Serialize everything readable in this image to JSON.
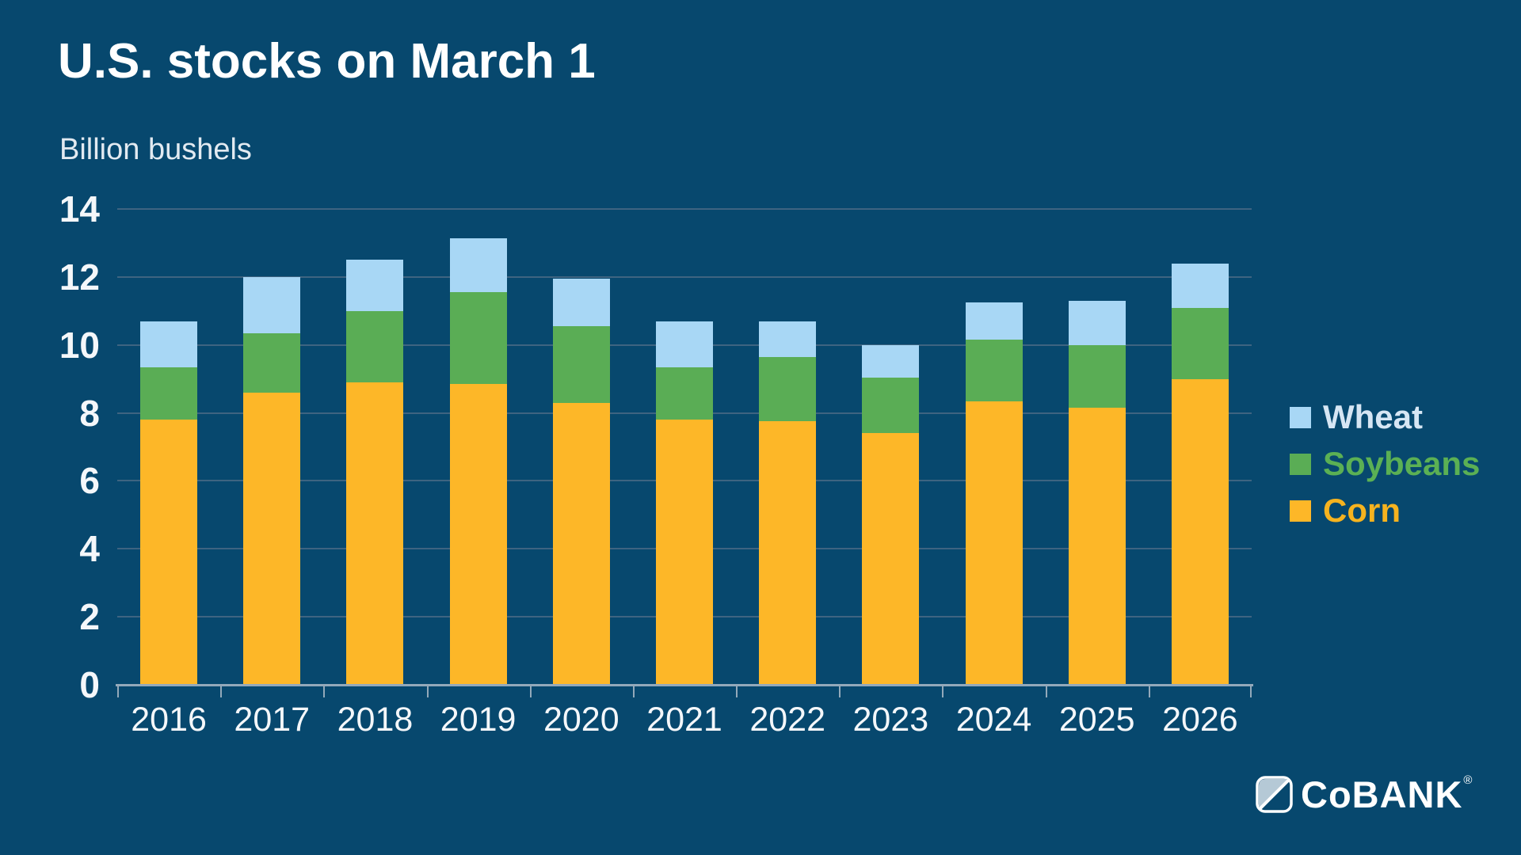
{
  "header": {
    "title": "U.S. stocks on March 1",
    "subtitle": "Billion bushels"
  },
  "chart_data": {
    "type": "bar",
    "stacked": true,
    "title": "U.S. stocks on March 1",
    "ylabel": "Billion bushels",
    "xlabel": "",
    "categories": [
      "2016",
      "2017",
      "2018",
      "2019",
      "2020",
      "2021",
      "2022",
      "2023",
      "2024",
      "2025",
      "2026"
    ],
    "series": [
      {
        "name": "Corn",
        "color": "#FDB728",
        "values": [
          7.8,
          8.6,
          8.9,
          8.85,
          8.3,
          7.8,
          7.75,
          7.4,
          8.35,
          8.15,
          9.0
        ]
      },
      {
        "name": "Soybeans",
        "color": "#5AAD55",
        "values": [
          1.55,
          1.75,
          2.1,
          2.7,
          2.25,
          1.55,
          1.9,
          1.65,
          1.8,
          1.85,
          2.1
        ]
      },
      {
        "name": "Wheat",
        "color": "#A8D7F5",
        "values": [
          1.35,
          1.65,
          1.5,
          1.6,
          1.4,
          1.35,
          1.05,
          0.95,
          1.1,
          1.3,
          1.3
        ]
      }
    ],
    "totals": [
      10.7,
      12.0,
      12.5,
      13.15,
      11.95,
      10.7,
      10.7,
      10.0,
      11.25,
      11.3,
      12.4
    ],
    "ylim": [
      0,
      14
    ],
    "yticks": [
      0,
      2,
      4,
      6,
      8,
      10,
      12,
      14
    ],
    "grid": true,
    "legend_position": "right"
  },
  "legend": {
    "items": [
      {
        "label": "Wheat",
        "swatch": "#A8D7F5",
        "text_color": "#D6E6F4"
      },
      {
        "label": "Soybeans",
        "swatch": "#5AAD55",
        "text_color": "#5BB054"
      },
      {
        "label": "Corn",
        "swatch": "#FDB728",
        "text_color": "#F6B31F"
      }
    ]
  },
  "logo": {
    "text": "CoBANK",
    "registered": "®"
  },
  "colors": {
    "background": "#07486E",
    "gridline": "#3E6481",
    "axis": "#93A9BA",
    "title": "#FFFFFF",
    "subtitle": "#E2EAF1",
    "tick_label": "#F4F7FA",
    "logo_light": "#B5C9D6"
  }
}
